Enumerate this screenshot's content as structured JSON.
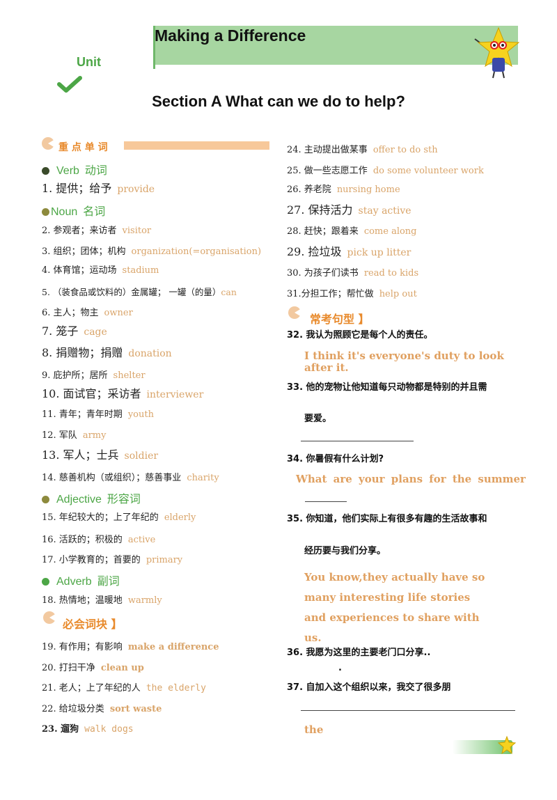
{
  "header": {
    "title": "Making a  Difference",
    "unit": "Unit",
    "section": "Section A What can we do to  help?"
  },
  "left_headings": {
    "key_words": "重  点  单  词",
    "must_chunks": "必会词块  】"
  },
  "categories": {
    "verb": {
      "en": "Verb",
      "cn": "动词"
    },
    "noun": {
      "en": "Noun",
      "cn": "名词"
    },
    "adjective": {
      "en": "Adjective",
      "cn": "形容词"
    },
    "adverb": {
      "en": "Adverb",
      "cn": "副词"
    }
  },
  "vocab": [
    {
      "cn": "1. 提供；给予",
      "en": "provide"
    },
    {
      "cn": "2. 参观者；来访者",
      "en": "visitor"
    },
    {
      "cn": "3. 组织；团体；机构",
      "en": "organization(=organisation)"
    },
    {
      "cn": "4. 体育馆；运动场",
      "en": "stadium"
    },
    {
      "cn": "5. （装食品或饮料的）金属罐；  一罐（的量）",
      "en": "can"
    },
    {
      "cn": "6. 主人；物主",
      "en": "owner"
    },
    {
      "cn": "7. 笼子",
      "en": "cage"
    },
    {
      "cn": "8. 捐赠物；捐赠",
      "en": "donation"
    },
    {
      "cn": "9. 庇护所；居所",
      "en": "shelter"
    },
    {
      "cn": "10. 面试官；采访者",
      "en": "interviewer"
    },
    {
      "cn": "11. 青年；青年时期",
      "en": "youth"
    },
    {
      "cn": "12. 军队",
      "en": "army"
    },
    {
      "cn": "13. 军人；士兵",
      "en": "soldier"
    },
    {
      "cn": "14. 慈善机构（或组织）；慈善事业",
      "en": "charity"
    },
    {
      "cn": "15. 年纪较大的；上了年纪的",
      "en": "elderly"
    },
    {
      "cn": "16. 活跃的；积极的",
      "en": "active"
    },
    {
      "cn": "17. 小学教育的；首要的",
      "en": "primary"
    },
    {
      "cn": "18. 热情地；温暖地",
      "en": "warmly"
    },
    {
      "cn": "19. 有作用；有影响",
      "en": "make  a  difference"
    },
    {
      "cn": "20. 打扫干净",
      "en": "clean  up"
    },
    {
      "cn": "21. 老人；上了年纪的人",
      "en": "the elderly"
    },
    {
      "cn": "22.  给垃圾分类",
      "en": "sort  waste"
    },
    {
      "cn": "23. 遛狗",
      "en": "walk  dogs"
    },
    {
      "cn": "24. 主动提出做某事",
      "en": "offer  to  do  sth"
    },
    {
      "cn": "25.  做一些志愿工作",
      "en": "do  some  volunteer  work"
    },
    {
      "cn": "26. 养老院",
      "en": "nursing  home"
    },
    {
      "cn": "27. 保持活力",
      "en": "stay active"
    },
    {
      "cn": "28. 赶快；跟着来",
      "en": "come  along"
    },
    {
      "cn": "29. 捡垃圾",
      "en": "pick up litter"
    },
    {
      "cn": "30. 为孩子们读书",
      "en": "read  to  kids"
    },
    {
      "cn": "31.分担工作；帮忙做",
      "en": "help  out"
    }
  ],
  "sentence_heading": "常考句型  】",
  "sentences": [
    {
      "q": "32. 我认为照顾它是每个人的责任。",
      "a": "I think it's everyone's duty to look after it."
    },
    {
      "q": "33. 他的宠物让他知道每只动物都是特别的并且需",
      "q2": "要爱。"
    },
    {
      "q": "34. 你暑假有什么计划?",
      "a": "What  are  your  plans  for  the  summer"
    },
    {
      "q": "35. 你知道，他们实际上有很多有趣的生活故事和",
      "q2": "经历要与我们分享。",
      "a": "You  know,they  actually  have  so many interesting life stories and experiences to share with us."
    },
    {
      "q": "36. 我愿为这里的主要老门口分享..",
      "q2": "."
    },
    {
      "q": "37. 自加入这个组织以来，我交了很多朋",
      "a": "the"
    }
  ]
}
